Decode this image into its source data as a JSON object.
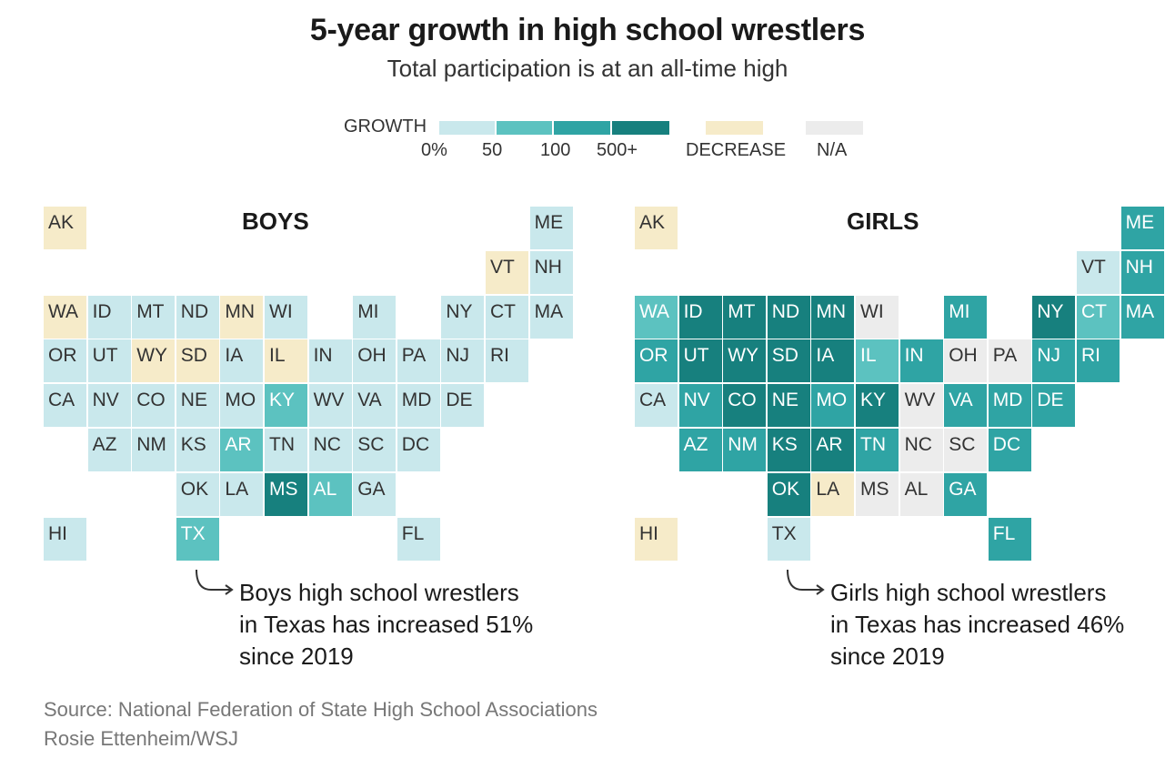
{
  "title": "5-year growth in high school wrestlers",
  "subtitle": "Total participation is at an all-time high",
  "legend": {
    "growth_label": "GROWTH",
    "ticks": [
      "0%",
      "50",
      "100",
      "500+"
    ],
    "decrease_label": "DECREASE",
    "na_label": "N/A",
    "colors": {
      "g0": "#c9e8ec",
      "g1": "#5cc2c0",
      "g2": "#2fa4a4",
      "g3": "#17807e",
      "decrease": "#f6ebc9",
      "na": "#ececec"
    }
  },
  "maps": [
    {
      "title": "BOYS",
      "note_lines": [
        "Boys high school wrestlers",
        "in Texas has increased 51%",
        "since 2019"
      ],
      "states": [
        {
          "abbr": "AK",
          "bin": "decrease"
        },
        {
          "abbr": "ME",
          "bin": "g0"
        },
        {
          "abbr": "VT",
          "bin": "decrease"
        },
        {
          "abbr": "NH",
          "bin": "g0"
        },
        {
          "abbr": "WA",
          "bin": "decrease"
        },
        {
          "abbr": "ID",
          "bin": "g0"
        },
        {
          "abbr": "MT",
          "bin": "g0"
        },
        {
          "abbr": "ND",
          "bin": "g0"
        },
        {
          "abbr": "MN",
          "bin": "decrease"
        },
        {
          "abbr": "WI",
          "bin": "g0"
        },
        {
          "abbr": "MI",
          "bin": "g0"
        },
        {
          "abbr": "NY",
          "bin": "g0"
        },
        {
          "abbr": "CT",
          "bin": "g0"
        },
        {
          "abbr": "MA",
          "bin": "g0"
        },
        {
          "abbr": "OR",
          "bin": "g0"
        },
        {
          "abbr": "UT",
          "bin": "g0"
        },
        {
          "abbr": "WY",
          "bin": "decrease"
        },
        {
          "abbr": "SD",
          "bin": "decrease"
        },
        {
          "abbr": "IA",
          "bin": "g0"
        },
        {
          "abbr": "IL",
          "bin": "decrease"
        },
        {
          "abbr": "IN",
          "bin": "g0"
        },
        {
          "abbr": "OH",
          "bin": "g0"
        },
        {
          "abbr": "PA",
          "bin": "g0"
        },
        {
          "abbr": "NJ",
          "bin": "g0"
        },
        {
          "abbr": "RI",
          "bin": "g0"
        },
        {
          "abbr": "CA",
          "bin": "g0"
        },
        {
          "abbr": "NV",
          "bin": "g0"
        },
        {
          "abbr": "CO",
          "bin": "g0"
        },
        {
          "abbr": "NE",
          "bin": "g0"
        },
        {
          "abbr": "MO",
          "bin": "g0"
        },
        {
          "abbr": "KY",
          "bin": "g1"
        },
        {
          "abbr": "WV",
          "bin": "g0"
        },
        {
          "abbr": "VA",
          "bin": "g0"
        },
        {
          "abbr": "MD",
          "bin": "g0"
        },
        {
          "abbr": "DE",
          "bin": "g0"
        },
        {
          "abbr": "AZ",
          "bin": "g0"
        },
        {
          "abbr": "NM",
          "bin": "g0"
        },
        {
          "abbr": "KS",
          "bin": "g0"
        },
        {
          "abbr": "AR",
          "bin": "g1"
        },
        {
          "abbr": "TN",
          "bin": "g0"
        },
        {
          "abbr": "NC",
          "bin": "g0"
        },
        {
          "abbr": "SC",
          "bin": "g0"
        },
        {
          "abbr": "DC",
          "bin": "g0"
        },
        {
          "abbr": "OK",
          "bin": "g0"
        },
        {
          "abbr": "LA",
          "bin": "g0"
        },
        {
          "abbr": "MS",
          "bin": "g3"
        },
        {
          "abbr": "AL",
          "bin": "g1"
        },
        {
          "abbr": "GA",
          "bin": "g0"
        },
        {
          "abbr": "HI",
          "bin": "g0"
        },
        {
          "abbr": "TX",
          "bin": "g1"
        },
        {
          "abbr": "FL",
          "bin": "g0"
        }
      ]
    },
    {
      "title": "GIRLS",
      "note_lines": [
        "Girls high school wrestlers",
        "in Texas has increased 46%",
        "since 2019"
      ],
      "states": [
        {
          "abbr": "AK",
          "bin": "decrease"
        },
        {
          "abbr": "ME",
          "bin": "g2"
        },
        {
          "abbr": "VT",
          "bin": "g0"
        },
        {
          "abbr": "NH",
          "bin": "g2"
        },
        {
          "abbr": "WA",
          "bin": "g1"
        },
        {
          "abbr": "ID",
          "bin": "g3"
        },
        {
          "abbr": "MT",
          "bin": "g3"
        },
        {
          "abbr": "ND",
          "bin": "g3"
        },
        {
          "abbr": "MN",
          "bin": "g3"
        },
        {
          "abbr": "WI",
          "bin": "na"
        },
        {
          "abbr": "MI",
          "bin": "g2"
        },
        {
          "abbr": "NY",
          "bin": "g3"
        },
        {
          "abbr": "CT",
          "bin": "g1"
        },
        {
          "abbr": "MA",
          "bin": "g2"
        },
        {
          "abbr": "OR",
          "bin": "g2"
        },
        {
          "abbr": "UT",
          "bin": "g3"
        },
        {
          "abbr": "WY",
          "bin": "g3"
        },
        {
          "abbr": "SD",
          "bin": "g3"
        },
        {
          "abbr": "IA",
          "bin": "g3"
        },
        {
          "abbr": "IL",
          "bin": "g1"
        },
        {
          "abbr": "IN",
          "bin": "g2"
        },
        {
          "abbr": "OH",
          "bin": "na"
        },
        {
          "abbr": "PA",
          "bin": "na"
        },
        {
          "abbr": "NJ",
          "bin": "g2"
        },
        {
          "abbr": "RI",
          "bin": "g2"
        },
        {
          "abbr": "CA",
          "bin": "g0"
        },
        {
          "abbr": "NV",
          "bin": "g2"
        },
        {
          "abbr": "CO",
          "bin": "g3"
        },
        {
          "abbr": "NE",
          "bin": "g3"
        },
        {
          "abbr": "MO",
          "bin": "g2"
        },
        {
          "abbr": "KY",
          "bin": "g3"
        },
        {
          "abbr": "WV",
          "bin": "na"
        },
        {
          "abbr": "VA",
          "bin": "g2"
        },
        {
          "abbr": "MD",
          "bin": "g2"
        },
        {
          "abbr": "DE",
          "bin": "g2"
        },
        {
          "abbr": "AZ",
          "bin": "g2"
        },
        {
          "abbr": "NM",
          "bin": "g2"
        },
        {
          "abbr": "KS",
          "bin": "g3"
        },
        {
          "abbr": "AR",
          "bin": "g3"
        },
        {
          "abbr": "TN",
          "bin": "g2"
        },
        {
          "abbr": "NC",
          "bin": "na"
        },
        {
          "abbr": "SC",
          "bin": "na"
        },
        {
          "abbr": "DC",
          "bin": "g2"
        },
        {
          "abbr": "OK",
          "bin": "g3"
        },
        {
          "abbr": "LA",
          "bin": "decrease"
        },
        {
          "abbr": "MS",
          "bin": "na"
        },
        {
          "abbr": "AL",
          "bin": "na"
        },
        {
          "abbr": "GA",
          "bin": "g2"
        },
        {
          "abbr": "HI",
          "bin": "decrease"
        },
        {
          "abbr": "TX",
          "bin": "g0"
        },
        {
          "abbr": "FL",
          "bin": "g2"
        }
      ]
    }
  ],
  "source_line1": "Source: National Federation of State High School Associations",
  "source_line2": "Rosie Ettenheim/WSJ"
}
